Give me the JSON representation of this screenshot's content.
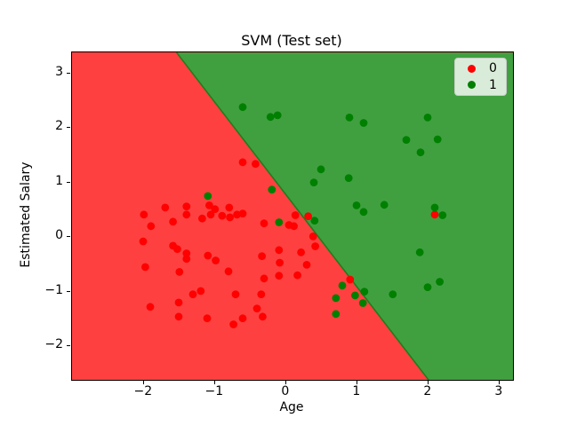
{
  "figure": {
    "title": "SVM (Test set)",
    "xlabel": "Age",
    "ylabel": "Estimated Salary"
  },
  "legend": {
    "entries": [
      {
        "label": "0",
        "color": "#ff0000"
      },
      {
        "label": "1",
        "color": "#008000"
      }
    ]
  },
  "colors": {
    "region_class0": "#ff4040",
    "region_class1": "#40a040",
    "boundary_edge": "#1e7d1e",
    "marker_class0": "#ff0000",
    "marker_class1": "#008000",
    "background": "#ffffff"
  },
  "chart_data": {
    "type": "scatter",
    "title": "SVM (Test set)",
    "xlabel": "Age",
    "ylabel": "Estimated Salary",
    "xlim": [
      -3.01,
      3.19
    ],
    "ylim": [
      -2.62,
      3.39
    ],
    "grid": false,
    "legend_position": "upper right",
    "xticks": [
      {
        "v": -2,
        "label": "−2"
      },
      {
        "v": -1,
        "label": "−1"
      },
      {
        "v": 0,
        "label": "0"
      },
      {
        "v": 1,
        "label": "1"
      },
      {
        "v": 2,
        "label": "2"
      },
      {
        "v": 3,
        "label": "3"
      }
    ],
    "yticks": [
      {
        "v": 3,
        "label": "3"
      },
      {
        "v": 2,
        "label": "2"
      },
      {
        "v": 1,
        "label": "1"
      },
      {
        "v": 0,
        "label": "0"
      },
      {
        "v": -1,
        "label": "−1"
      },
      {
        "v": -2,
        "label": "−2"
      }
    ],
    "decision_boundary": {
      "x_at_ymax": -1.54,
      "x_at_ymin": 2.01
    },
    "series": [
      {
        "name": "0",
        "color": "#ff0000",
        "points": [
          [
            -0.61,
            1.38
          ],
          [
            -0.43,
            1.35
          ],
          [
            -2.0,
            0.42
          ],
          [
            -1.9,
            0.21
          ],
          [
            -1.7,
            0.55
          ],
          [
            -1.59,
            0.29
          ],
          [
            -1.4,
            0.57
          ],
          [
            -1.4,
            0.42
          ],
          [
            -1.18,
            0.35
          ],
          [
            -1.08,
            0.59
          ],
          [
            -1.06,
            0.42
          ],
          [
            -1.0,
            0.52
          ],
          [
            -0.9,
            0.4
          ],
          [
            -0.8,
            0.55
          ],
          [
            -0.79,
            0.37
          ],
          [
            -0.69,
            0.42
          ],
          [
            -0.61,
            0.44
          ],
          [
            -0.31,
            0.26
          ],
          [
            0.04,
            0.23
          ],
          [
            0.13,
            0.41
          ],
          [
            0.11,
            0.21
          ],
          [
            0.31,
            0.39
          ],
          [
            -2.01,
            -0.07
          ],
          [
            -1.59,
            -0.15
          ],
          [
            -1.53,
            -0.21
          ],
          [
            -1.4,
            -0.29
          ],
          [
            -1.4,
            -0.39
          ],
          [
            -1.1,
            -0.33
          ],
          [
            -0.99,
            -0.42
          ],
          [
            -1.98,
            -0.54
          ],
          [
            -1.5,
            -0.63
          ],
          [
            -0.81,
            -0.62
          ],
          [
            -0.34,
            -0.34
          ],
          [
            -0.1,
            -0.23
          ],
          [
            -0.09,
            -0.46
          ],
          [
            -0.31,
            -0.75
          ],
          [
            -0.1,
            -0.7
          ],
          [
            -0.35,
            -1.04
          ],
          [
            -0.71,
            -1.04
          ],
          [
            0.38,
            0.02
          ],
          [
            0.41,
            -0.16
          ],
          [
            0.21,
            -0.27
          ],
          [
            0.29,
            -0.5
          ],
          [
            0.16,
            -0.69
          ],
          [
            0.9,
            -0.77
          ],
          [
            -1.91,
            -1.27
          ],
          [
            -1.51,
            -1.19
          ],
          [
            -1.51,
            -1.45
          ],
          [
            -1.31,
            -1.04
          ],
          [
            -1.2,
            -0.98
          ],
          [
            -1.11,
            -1.48
          ],
          [
            -0.74,
            -1.59
          ],
          [
            -0.61,
            -1.48
          ],
          [
            -0.41,
            -1.3
          ],
          [
            -0.33,
            -1.45
          ],
          [
            2.09,
            0.42
          ]
        ]
      },
      {
        "name": "1",
        "color": "#008000",
        "points": [
          [
            -0.61,
            2.39
          ],
          [
            -0.22,
            2.21
          ],
          [
            -0.12,
            2.24
          ],
          [
            0.89,
            2.2
          ],
          [
            1.09,
            2.1
          ],
          [
            1.99,
            2.2
          ],
          [
            1.69,
            1.79
          ],
          [
            2.13,
            1.8
          ],
          [
            1.89,
            1.56
          ],
          [
            0.49,
            1.25
          ],
          [
            0.39,
            1.01
          ],
          [
            0.88,
            1.09
          ],
          [
            -1.1,
            0.76
          ],
          [
            -0.2,
            0.88
          ],
          [
            -0.1,
            0.28
          ],
          [
            0.4,
            0.31
          ],
          [
            0.99,
            0.59
          ],
          [
            1.09,
            0.47
          ],
          [
            1.38,
            0.6
          ],
          [
            2.09,
            0.55
          ],
          [
            2.2,
            0.41
          ],
          [
            1.88,
            -0.27
          ],
          [
            0.79,
            -0.88
          ],
          [
            0.97,
            -1.06
          ],
          [
            1.1,
            -0.99
          ],
          [
            0.7,
            -1.11
          ],
          [
            1.08,
            -1.2
          ],
          [
            0.7,
            -1.4
          ],
          [
            1.5,
            -1.04
          ],
          [
            1.99,
            -0.91
          ],
          [
            2.16,
            -0.81
          ]
        ]
      }
    ]
  }
}
